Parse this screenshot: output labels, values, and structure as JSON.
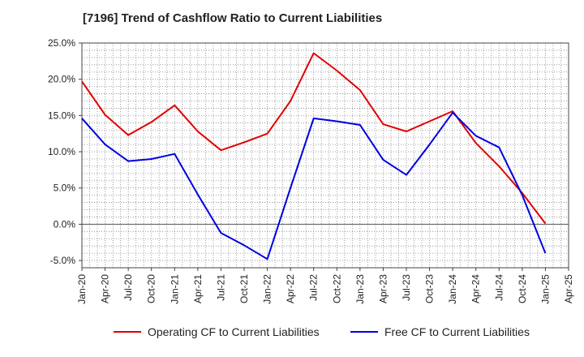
{
  "chart_data": {
    "type": "line",
    "title": "[7196]  Trend of Cashflow Ratio to Current Liabilities",
    "xlabel": "",
    "ylabel": "",
    "x_ticks": [
      "Jan-20",
      "Apr-20",
      "Jul-20",
      "Oct-20",
      "Jan-21",
      "Apr-21",
      "Jul-21",
      "Oct-21",
      "Jan-22",
      "Apr-22",
      "Jul-22",
      "Oct-22",
      "Jan-23",
      "Apr-23",
      "Jul-23",
      "Oct-23",
      "Jan-24",
      "Apr-24",
      "Jul-24",
      "Oct-24",
      "Jan-25",
      "Apr-25"
    ],
    "y_ticks": [
      "25.0%",
      "20.0%",
      "15.0%",
      "10.0%",
      "5.0%",
      "0.0%",
      "-5.0%"
    ],
    "y_tick_values": [
      25,
      20,
      15,
      10,
      5,
      0,
      -5
    ],
    "ylim": [
      -6,
      25
    ],
    "grid": true,
    "legend_position": "bottom",
    "series": [
      {
        "name": "Operating CF to Current Liabilities",
        "color": "#e00000",
        "values": [
          19.7,
          15.1,
          12.3,
          14.1,
          16.4,
          12.8,
          10.2,
          11.3,
          12.5,
          17.0,
          23.6,
          21.2,
          18.5,
          13.8,
          12.8,
          14.2,
          15.6,
          11.2,
          8.0,
          4.3,
          0.1
        ]
      },
      {
        "name": "Free CF to Current Liabilities",
        "color": "#0000e0",
        "values": [
          14.6,
          11.0,
          8.7,
          9.0,
          9.7,
          4.1,
          -1.2,
          -2.9,
          -4.8,
          5.0,
          14.6,
          14.2,
          13.7,
          8.9,
          6.8,
          11.0,
          15.4,
          12.2,
          10.6,
          4.0,
          -4.0
        ]
      }
    ]
  }
}
